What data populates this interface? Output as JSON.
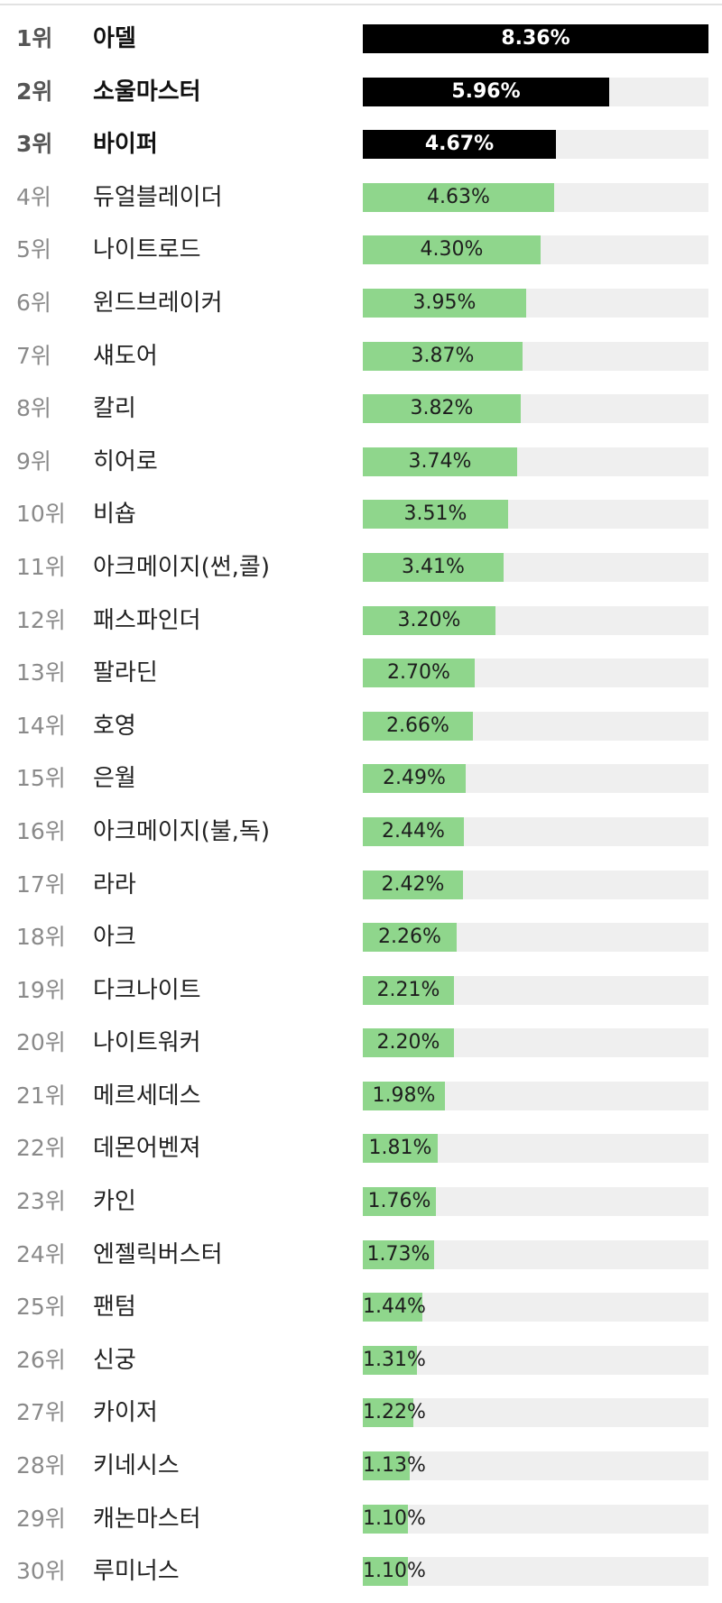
{
  "chart_data": {
    "type": "bar",
    "orientation": "horizontal",
    "title": "",
    "highlight_colors": {
      "top3": "#000000",
      "rest": "#8fd68c",
      "track": "#efefef"
    },
    "xlim": [
      0,
      8.36
    ],
    "rows": [
      {
        "rank": "1위",
        "name": "아델",
        "value": 8.36,
        "label": "8.36%"
      },
      {
        "rank": "2위",
        "name": "소울마스터",
        "value": 5.96,
        "label": "5.96%"
      },
      {
        "rank": "3위",
        "name": "바이퍼",
        "value": 4.67,
        "label": "4.67%"
      },
      {
        "rank": "4위",
        "name": "듀얼블레이더",
        "value": 4.63,
        "label": "4.63%"
      },
      {
        "rank": "5위",
        "name": "나이트로드",
        "value": 4.3,
        "label": "4.30%"
      },
      {
        "rank": "6위",
        "name": "윈드브레이커",
        "value": 3.95,
        "label": "3.95%"
      },
      {
        "rank": "7위",
        "name": "섀도어",
        "value": 3.87,
        "label": "3.87%"
      },
      {
        "rank": "8위",
        "name": "칼리",
        "value": 3.82,
        "label": "3.82%"
      },
      {
        "rank": "9위",
        "name": "히어로",
        "value": 3.74,
        "label": "3.74%"
      },
      {
        "rank": "10위",
        "name": "비숍",
        "value": 3.51,
        "label": "3.51%"
      },
      {
        "rank": "11위",
        "name": "아크메이지(썬,콜)",
        "value": 3.41,
        "label": "3.41%"
      },
      {
        "rank": "12위",
        "name": "패스파인더",
        "value": 3.2,
        "label": "3.20%"
      },
      {
        "rank": "13위",
        "name": "팔라딘",
        "value": 2.7,
        "label": "2.70%"
      },
      {
        "rank": "14위",
        "name": "호영",
        "value": 2.66,
        "label": "2.66%"
      },
      {
        "rank": "15위",
        "name": "은월",
        "value": 2.49,
        "label": "2.49%"
      },
      {
        "rank": "16위",
        "name": "아크메이지(불,독)",
        "value": 2.44,
        "label": "2.44%"
      },
      {
        "rank": "17위",
        "name": "라라",
        "value": 2.42,
        "label": "2.42%"
      },
      {
        "rank": "18위",
        "name": "아크",
        "value": 2.26,
        "label": "2.26%"
      },
      {
        "rank": "19위",
        "name": "다크나이트",
        "value": 2.21,
        "label": "2.21%"
      },
      {
        "rank": "20위",
        "name": "나이트워커",
        "value": 2.2,
        "label": "2.20%"
      },
      {
        "rank": "21위",
        "name": "메르세데스",
        "value": 1.98,
        "label": "1.98%"
      },
      {
        "rank": "22위",
        "name": "데몬어벤져",
        "value": 1.81,
        "label": "1.81%"
      },
      {
        "rank": "23위",
        "name": "카인",
        "value": 1.76,
        "label": "1.76%"
      },
      {
        "rank": "24위",
        "name": "엔젤릭버스터",
        "value": 1.73,
        "label": "1.73%"
      },
      {
        "rank": "25위",
        "name": "팬텀",
        "value": 1.44,
        "label": "1.44%"
      },
      {
        "rank": "26위",
        "name": "신궁",
        "value": 1.31,
        "label": "1.31%"
      },
      {
        "rank": "27위",
        "name": "카이저",
        "value": 1.22,
        "label": "1.22%"
      },
      {
        "rank": "28위",
        "name": "키네시스",
        "value": 1.13,
        "label": "1.13%"
      },
      {
        "rank": "29위",
        "name": "캐논마스터",
        "value": 1.1,
        "label": "1.10%"
      },
      {
        "rank": "30위",
        "name": "루미너스",
        "value": 1.1,
        "label": "1.10%"
      }
    ]
  }
}
